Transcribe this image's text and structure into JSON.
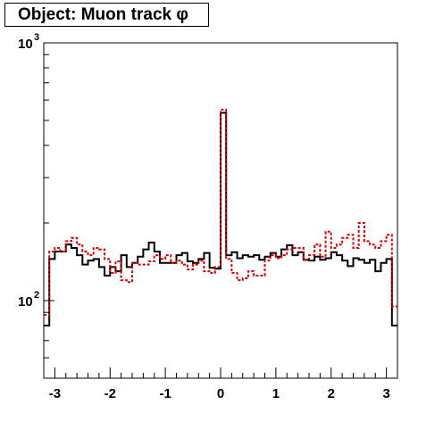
{
  "chart_data": {
    "type": "histogram",
    "title": "Object: Muon track φ",
    "xlabel": "",
    "ylabel": "",
    "xlim": [
      -3.2,
      3.2
    ],
    "ylim": [
      50,
      1000
    ],
    "yscale": "log",
    "x_ticks": [
      "-3",
      "-2",
      "-1",
      "0",
      "1",
      "2",
      "3"
    ],
    "y_ticks": [
      {
        "base": "10",
        "exp": "2"
      },
      {
        "base": "10",
        "exp": "3"
      }
    ],
    "bin_edges_range": [
      -3.2,
      3.2
    ],
    "bin_count": 64,
    "series": [
      {
        "color": "#000000",
        "style": "solid",
        "values": [
          80,
          145,
          155,
          155,
          165,
          160,
          150,
          138,
          143,
          145,
          135,
          125,
          135,
          130,
          150,
          135,
          140,
          148,
          158,
          168,
          155,
          140,
          140,
          140,
          150,
          153,
          142,
          140,
          145,
          153,
          134,
          133,
          535,
          150,
          154,
          146,
          150,
          148,
          150,
          144,
          148,
          153,
          148,
          158,
          164,
          150,
          154,
          144,
          143,
          148,
          144,
          146,
          154,
          150,
          143,
          136,
          146,
          144,
          140,
          144,
          130,
          140,
          145,
          80
        ]
      },
      {
        "color": "#dd0000",
        "style": "dashed",
        "values": [
          88,
          155,
          160,
          155,
          170,
          175,
          165,
          155,
          150,
          160,
          158,
          145,
          128,
          142,
          120,
          118,
          140,
          138,
          138,
          142,
          150,
          145,
          150,
          140,
          143,
          138,
          132,
          138,
          143,
          130,
          128,
          135,
          550,
          145,
          128,
          120,
          122,
          130,
          125,
          125,
          143,
          150,
          146,
          150,
          158,
          160,
          160,
          144,
          150,
          165,
          148,
          185,
          160,
          165,
          175,
          180,
          160,
          200,
          170,
          165,
          160,
          170,
          180,
          95
        ]
      }
    ],
    "grid": false,
    "legend": "none"
  }
}
